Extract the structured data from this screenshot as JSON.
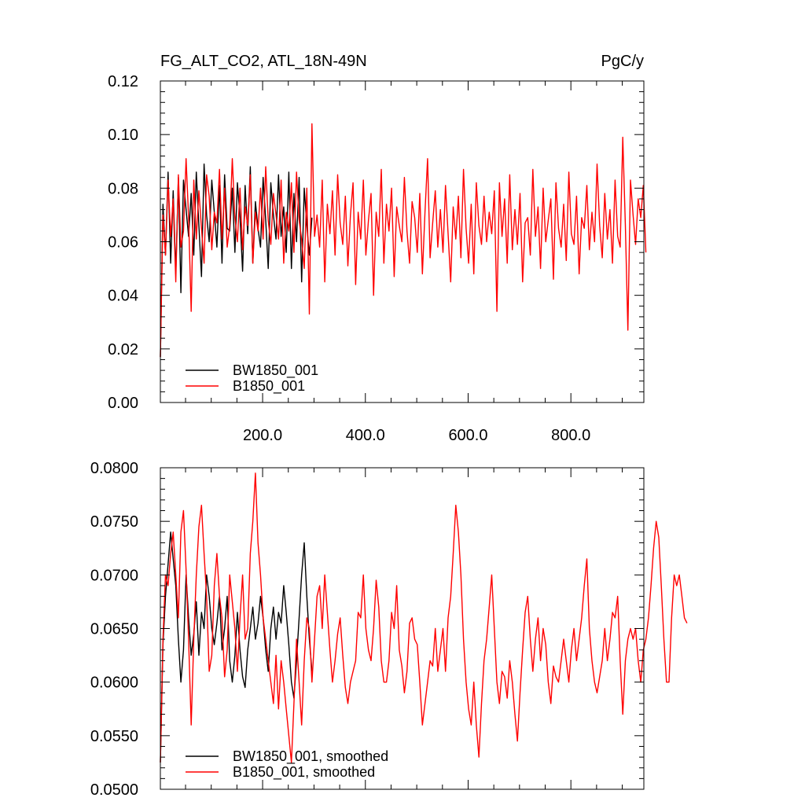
{
  "chart_data": [
    {
      "type": "line",
      "title": "FG_ALT_CO2, ATL_18N-49N",
      "units": "PgC/y",
      "xlim": [
        1,
        942
      ],
      "ylim": [
        0.0,
        0.12
      ],
      "xticks": [
        200,
        400,
        600,
        800
      ],
      "xtick_labels": [
        "200.0",
        "400.0",
        "600.0",
        "800.0"
      ],
      "yticks": [
        0.0,
        0.02,
        0.04,
        0.06,
        0.08,
        0.1,
        0.12
      ],
      "ytick_labels": [
        "0.00",
        "0.02",
        "0.04",
        "0.06",
        "0.08",
        "0.10",
        "0.12"
      ],
      "legend_position": "bottom-left",
      "series": [
        {
          "name": "BW1850_001",
          "color": "#000000",
          "x_start": 1,
          "x_step": 5,
          "values": [
            0.017,
            0.074,
            0.055,
            0.086,
            0.052,
            0.079,
            0.048,
            0.084,
            0.041,
            0.083,
            0.072,
            0.062,
            0.078,
            0.055,
            0.086,
            0.066,
            0.047,
            0.089,
            0.07,
            0.06,
            0.083,
            0.071,
            0.058,
            0.081,
            0.052,
            0.085,
            0.065,
            0.064,
            0.08,
            0.056,
            0.082,
            0.069,
            0.049,
            0.081,
            0.063,
            0.088,
            0.052,
            0.075,
            0.065,
            0.058,
            0.084,
            0.068,
            0.05,
            0.082,
            0.07,
            0.061,
            0.085,
            0.062,
            0.073,
            0.056,
            0.086,
            0.05,
            0.078,
            0.06,
            0.084,
            0.045,
            0.08,
            0.066,
            0.055,
            0.069
          ]
        },
        {
          "name": "B1850_001",
          "color": "#ff0000",
          "x_start": 1,
          "x_step": 5,
          "values": [
            0.017,
            0.07,
            0.055,
            0.083,
            0.062,
            0.076,
            0.045,
            0.085,
            0.058,
            0.064,
            0.091,
            0.069,
            0.034,
            0.083,
            0.061,
            0.079,
            0.065,
            0.052,
            0.085,
            0.077,
            0.057,
            0.071,
            0.067,
            0.087,
            0.061,
            0.08,
            0.058,
            0.066,
            0.091,
            0.069,
            0.06,
            0.08,
            0.057,
            0.073,
            0.066,
            0.085,
            0.052,
            0.071,
            0.064,
            0.08,
            0.061,
            0.088,
            0.068,
            0.059,
            0.078,
            0.07,
            0.061,
            0.083,
            0.052,
            0.071,
            0.064,
            0.082,
            0.056,
            0.086,
            0.068,
            0.061,
            0.05,
            0.08,
            0.033,
            0.104,
            0.062,
            0.07,
            0.058,
            0.083,
            0.045,
            0.074,
            0.063,
            0.079,
            0.055,
            0.085,
            0.067,
            0.059,
            0.077,
            0.051,
            0.07,
            0.082,
            0.044,
            0.071,
            0.061,
            0.083,
            0.055,
            0.068,
            0.078,
            0.04,
            0.071,
            0.062,
            0.087,
            0.052,
            0.074,
            0.064,
            0.08,
            0.047,
            0.073,
            0.066,
            0.06,
            0.084,
            0.064,
            0.052,
            0.075,
            0.069,
            0.056,
            0.078,
            0.048,
            0.071,
            0.091,
            0.054,
            0.067,
            0.079,
            0.058,
            0.072,
            0.056,
            0.081,
            0.063,
            0.045,
            0.073,
            0.061,
            0.077,
            0.054,
            0.087,
            0.065,
            0.052,
            0.074,
            0.048,
            0.082,
            0.066,
            0.059,
            0.077,
            0.06,
            0.071,
            0.063,
            0.079,
            0.034,
            0.082,
            0.062,
            0.076,
            0.052,
            0.085,
            0.057,
            0.072,
            0.059,
            0.078,
            0.045,
            0.067,
            0.069,
            0.055,
            0.087,
            0.062,
            0.073,
            0.05,
            0.08,
            0.06,
            0.068,
            0.076,
            0.046,
            0.082,
            0.065,
            0.058,
            0.074,
            0.053,
            0.086,
            0.063,
            0.059,
            0.077,
            0.048,
            0.069,
            0.065,
            0.081,
            0.057,
            0.071,
            0.06,
            0.089,
            0.066,
            0.054,
            0.078,
            0.061,
            0.072,
            0.052,
            0.083,
            0.062,
            0.058,
            0.099,
            0.066,
            0.027,
            0.083,
            0.07,
            0.059,
            0.076,
            0.069,
            0.081,
            0.056
          ]
        }
      ]
    },
    {
      "type": "line",
      "xlim": [
        1,
        942
      ],
      "ylim": [
        0.05,
        0.08
      ],
      "xticks": [
        200,
        400,
        600,
        800
      ],
      "yticks": [
        0.05,
        0.055,
        0.06,
        0.065,
        0.07,
        0.075,
        0.08
      ],
      "ytick_labels": [
        "0.0500",
        "0.0550",
        "0.0600",
        "0.0650",
        "0.0700",
        "0.0750",
        "0.0800"
      ],
      "legend_position": "bottom-left",
      "series": [
        {
          "name": "BW1850_001, smoothed",
          "color": "#000000",
          "x_start": 1,
          "x_step": 5,
          "values": [
            0.0525,
            0.0635,
            0.068,
            0.071,
            0.074,
            0.0715,
            0.069,
            0.064,
            0.06,
            0.063,
            0.07,
            0.066,
            0.0625,
            0.0645,
            0.0675,
            0.0625,
            0.0665,
            0.065,
            0.07,
            0.068,
            0.065,
            0.0635,
            0.0655,
            0.068,
            0.063,
            0.065,
            0.068,
            0.062,
            0.06,
            0.0625,
            0.0665,
            0.063,
            0.0605,
            0.0595,
            0.063,
            0.065,
            0.067,
            0.064,
            0.0655,
            0.068,
            0.066,
            0.063,
            0.061,
            0.065,
            0.067,
            0.064,
            0.0665,
            0.0655,
            0.069,
            0.0665,
            0.0635,
            0.06,
            0.0585,
            0.062,
            0.066,
            0.07,
            0.073,
            0.068,
            0.064,
            0.061
          ]
        },
        {
          "name": "B1850_001, smoothed",
          "color": "#ff0000",
          "x_start": 1,
          "x_step": 5,
          "values": [
            0.0525,
            0.064,
            0.07,
            0.069,
            0.072,
            0.074,
            0.07,
            0.066,
            0.074,
            0.076,
            0.0705,
            0.064,
            0.056,
            0.064,
            0.07,
            0.0745,
            0.0765,
            0.072,
            0.068,
            0.061,
            0.0625,
            0.069,
            0.072,
            0.068,
            0.066,
            0.0605,
            0.063,
            0.07,
            0.0675,
            0.065,
            0.061,
            0.066,
            0.07,
            0.064,
            0.065,
            0.072,
            0.075,
            0.0795,
            0.073,
            0.07,
            0.066,
            0.064,
            0.062,
            0.06,
            0.058,
            0.0625,
            0.0575,
            0.062,
            0.06,
            0.0575,
            0.055,
            0.0525,
            0.058,
            0.064,
            0.06,
            0.056,
            0.062,
            0.066,
            0.065,
            0.06,
            0.064,
            0.068,
            0.069,
            0.065,
            0.07,
            0.0665,
            0.063,
            0.06,
            0.062,
            0.0645,
            0.066,
            0.0625,
            0.0595,
            0.058,
            0.06,
            0.061,
            0.062,
            0.0665,
            0.066,
            0.07,
            0.065,
            0.063,
            0.062,
            0.065,
            0.0695,
            0.067,
            0.062,
            0.06,
            0.06,
            0.062,
            0.0665,
            0.065,
            0.069,
            0.063,
            0.0615,
            0.059,
            0.061,
            0.0655,
            0.066,
            0.064,
            0.0635,
            0.06,
            0.056,
            0.058,
            0.06,
            0.062,
            0.0615,
            0.065,
            0.061,
            0.063,
            0.065,
            0.061,
            0.066,
            0.068,
            0.072,
            0.0765,
            0.074,
            0.07,
            0.064,
            0.06,
            0.0575,
            0.056,
            0.06,
            0.056,
            0.053,
            0.058,
            0.062,
            0.064,
            0.067,
            0.07,
            0.065,
            0.06,
            0.058,
            0.061,
            0.0605,
            0.0585,
            0.062,
            0.06,
            0.057,
            0.0545,
            0.059,
            0.063,
            0.0665,
            0.068,
            0.064,
            0.061,
            0.064,
            0.066,
            0.062,
            0.065,
            0.0635,
            0.06,
            0.058,
            0.0615,
            0.0605,
            0.06,
            0.062,
            0.064,
            0.062,
            0.06,
            0.063,
            0.065,
            0.062,
            0.064,
            0.066,
            0.069,
            0.0715,
            0.065,
            0.062,
            0.06,
            0.059,
            0.0605,
            0.062,
            0.065,
            0.062,
            0.064,
            0.0665,
            0.066,
            0.068,
            0.062,
            0.057,
            0.062,
            0.064,
            0.065,
            0.064,
            0.065,
            0.062,
            0.06,
            0.063,
            0.064,
            0.066,
            0.069,
            0.0725,
            0.075,
            0.0735,
            0.069,
            0.064,
            0.06,
            0.06,
            0.066,
            0.07,
            0.069,
            0.07,
            0.068,
            0.066,
            0.0655
          ]
        }
      ]
    }
  ]
}
